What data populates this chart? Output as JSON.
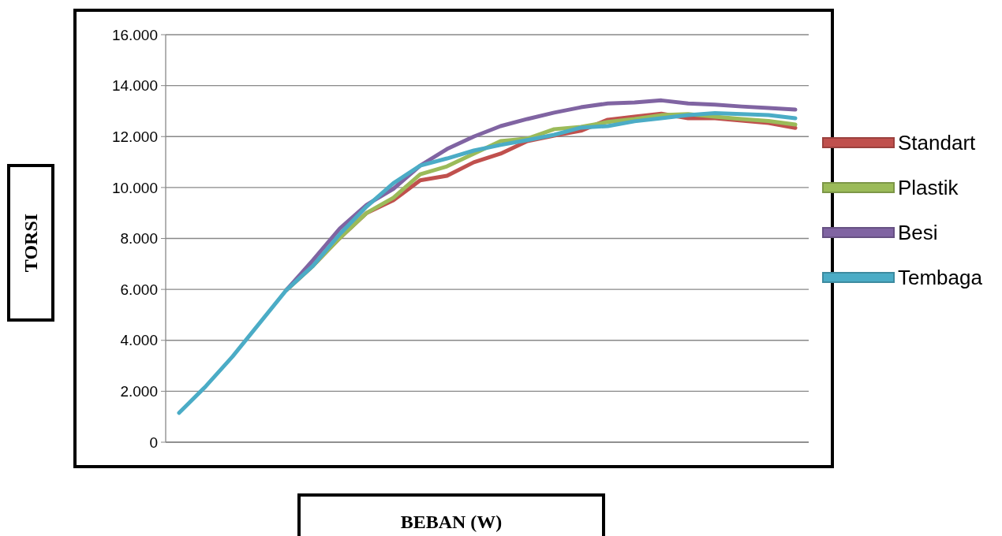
{
  "chart_data": {
    "type": "line",
    "xlabel": "BEBAN (W)",
    "ylabel": "TORSI",
    "categories": [
      null,
      null,
      null,
      null,
      null,
      null,
      null,
      null,
      null,
      null,
      null,
      null,
      null,
      null,
      null,
      null,
      null,
      null,
      null,
      null,
      null,
      null,
      null,
      null
    ],
    "series": [
      {
        "name": "Standart",
        "color": "#c0504d",
        "values": [
          null,
          null,
          null,
          null,
          5970,
          6930,
          8020,
          9000,
          9500,
          10280,
          10460,
          10990,
          11330,
          11820,
          12040,
          12230,
          12660,
          12780,
          12900,
          12720,
          12720,
          12630,
          12530,
          12340
        ]
      },
      {
        "name": "Plastik",
        "color": "#9bbb59",
        "values": [
          null,
          null,
          null,
          null,
          5970,
          6930,
          8020,
          9000,
          9600,
          10520,
          10830,
          11330,
          11820,
          11920,
          12290,
          12380,
          12570,
          12690,
          12840,
          12880,
          12780,
          12690,
          12610,
          12470
        ]
      },
      {
        "name": "Besi",
        "color": "#8064a2",
        "values": [
          null,
          null,
          null,
          null,
          5970,
          7150,
          8390,
          9320,
          9950,
          10860,
          11510,
          12000,
          12410,
          12690,
          12940,
          13150,
          13300,
          13340,
          13420,
          13300,
          13250,
          13180,
          13120,
          13060
        ]
      },
      {
        "name": "Tembaga",
        "color": "#4bacc6",
        "values": [
          1150,
          2200,
          3370,
          4670,
          5970,
          6930,
          8170,
          9250,
          10170,
          10860,
          11140,
          11450,
          11670,
          11860,
          12070,
          12350,
          12410,
          12600,
          12720,
          12840,
          12920,
          12880,
          12840,
          12720
        ]
      }
    ],
    "ylim": [
      0,
      16000
    ],
    "yticks": [
      0,
      {
        "value": 2000,
        "label": "2.000"
      },
      {
        "value": 4000,
        "label": "4.000"
      },
      {
        "value": 6000,
        "label": "6.000"
      },
      {
        "value": 8000,
        "label": "8.000"
      },
      {
        "value": 10000,
        "label": "10.000"
      },
      {
        "value": 12000,
        "label": "12.000"
      },
      {
        "value": 14000,
        "label": "14.000"
      },
      {
        "value": 16000,
        "label": "16.000"
      }
    ],
    "grid": "y",
    "legend": "right",
    "marker": "none",
    "line_style": "solid"
  }
}
